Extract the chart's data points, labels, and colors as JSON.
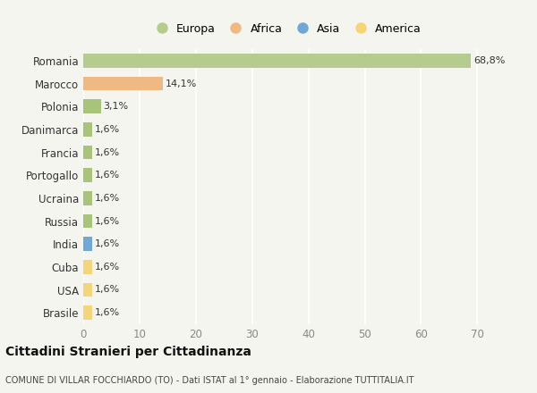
{
  "categories": [
    "Romania",
    "Marocco",
    "Polonia",
    "Danimarca",
    "Francia",
    "Portogallo",
    "Ucraina",
    "Russia",
    "India",
    "Cuba",
    "USA",
    "Brasile"
  ],
  "values": [
    68.8,
    14.1,
    3.1,
    1.6,
    1.6,
    1.6,
    1.6,
    1.6,
    1.6,
    1.6,
    1.6,
    1.6
  ],
  "labels": [
    "68,8%",
    "14,1%",
    "3,1%",
    "1,6%",
    "1,6%",
    "1,6%",
    "1,6%",
    "1,6%",
    "1,6%",
    "1,6%",
    "1,6%",
    "1,6%"
  ],
  "bar_colors": [
    "#b5cc8e",
    "#f0b882",
    "#a8c47a",
    "#a8c47a",
    "#a8c47a",
    "#a8c47a",
    "#a8c47a",
    "#a8c47a",
    "#6fa8d6",
    "#f5d57a",
    "#f5d57a",
    "#f5d57a"
  ],
  "legend_labels": [
    "Europa",
    "Africa",
    "Asia",
    "America"
  ],
  "legend_colors": [
    "#b5cc8e",
    "#f0b882",
    "#6fa8d6",
    "#f5d57a"
  ],
  "xlim": [
    0,
    72
  ],
  "xticks": [
    0,
    10,
    20,
    30,
    40,
    50,
    60,
    70
  ],
  "title": "Cittadini Stranieri per Cittadinanza",
  "subtitle": "COMUNE DI VILLAR FOCCHIARDO (TO) - Dati ISTAT al 1° gennaio - Elaborazione TUTTITALIA.IT",
  "background_color": "#f5f5f0",
  "grid_color": "#ffffff",
  "bar_height": 0.6
}
